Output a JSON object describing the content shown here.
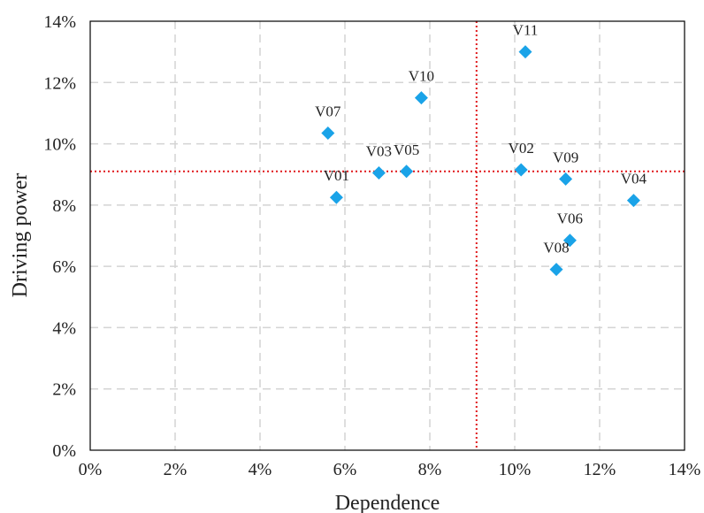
{
  "chart_data": {
    "type": "scatter",
    "title": "",
    "xlabel": "Dependence",
    "ylabel": "Driving power",
    "xlim": [
      0,
      14
    ],
    "ylim": [
      0,
      14
    ],
    "x_ticks": [
      "0%",
      "2%",
      "4%",
      "6%",
      "8%",
      "10%",
      "12%",
      "14%"
    ],
    "y_ticks": [
      "0%",
      "2%",
      "4%",
      "6%",
      "8%",
      "10%",
      "12%",
      "14%"
    ],
    "tick_values": [
      0,
      2,
      4,
      6,
      8,
      10,
      12,
      14
    ],
    "grid": true,
    "marker": "diamond",
    "marker_color": "#1aa3e8",
    "reference_lines": {
      "x": 9.1,
      "y": 9.1,
      "color": "#e0191c",
      "style": "dotted"
    },
    "points": [
      {
        "label": "V01",
        "x": 5.8,
        "y": 8.25
      },
      {
        "label": "V02",
        "x": 10.15,
        "y": 9.15
      },
      {
        "label": "V03",
        "x": 6.8,
        "y": 9.05
      },
      {
        "label": "V04",
        "x": 12.8,
        "y": 8.15
      },
      {
        "label": "V05",
        "x": 7.45,
        "y": 9.1
      },
      {
        "label": "V06",
        "x": 11.3,
        "y": 6.85
      },
      {
        "label": "V07",
        "x": 5.6,
        "y": 10.35
      },
      {
        "label": "V08",
        "x": 10.98,
        "y": 5.9
      },
      {
        "label": "V09",
        "x": 11.2,
        "y": 8.85
      },
      {
        "label": "V10",
        "x": 7.8,
        "y": 11.5
      },
      {
        "label": "V11",
        "x": 10.25,
        "y": 13.0
      }
    ]
  }
}
